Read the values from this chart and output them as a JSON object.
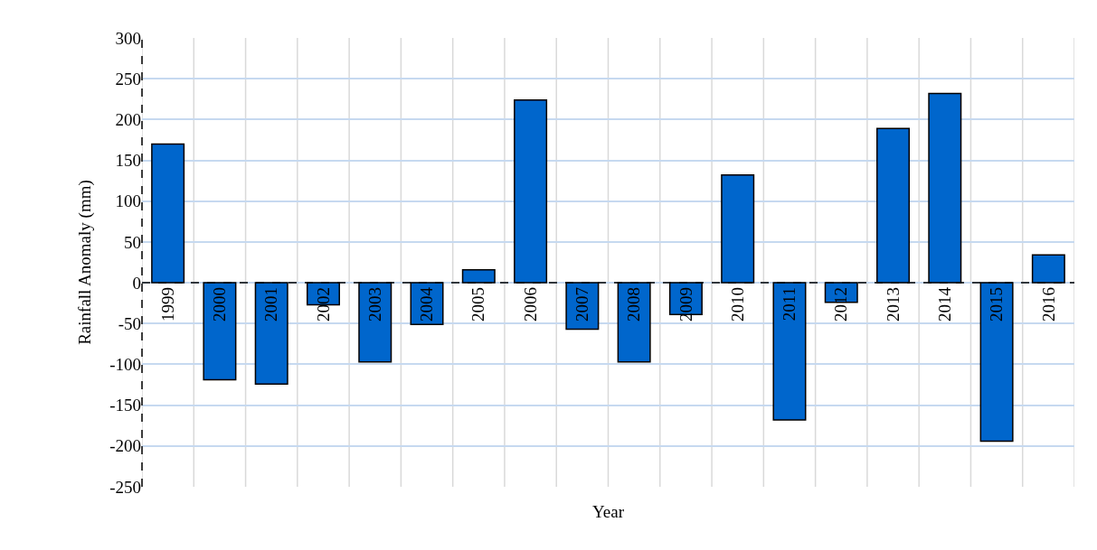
{
  "chart_data": {
    "type": "bar",
    "xlabel": "Year",
    "ylabel": "Rainfall Anomaly (mm)",
    "categories": [
      "1999",
      "2000",
      "2001",
      "2002",
      "2003",
      "2004",
      "2005",
      "2006",
      "2007",
      "2008",
      "2009",
      "2010",
      "2011",
      "2012",
      "2013",
      "2014",
      "2015",
      "2016"
    ],
    "values": [
      170,
      -119,
      -124,
      -27,
      -97,
      -51,
      16,
      224,
      -57,
      -97,
      -39,
      132,
      -168,
      -24,
      189,
      232,
      -194,
      34
    ],
    "color": "#0066cc",
    "ylim": [
      -250,
      300
    ],
    "yticks": [
      -250,
      -200,
      -150,
      -100,
      -50,
      0,
      50,
      100,
      150,
      200,
      250,
      300
    ],
    "ref_lines": [
      {
        "axis": "y",
        "value": 0,
        "color": "#000000",
        "line_style": "dashed"
      }
    ],
    "grid": true
  }
}
